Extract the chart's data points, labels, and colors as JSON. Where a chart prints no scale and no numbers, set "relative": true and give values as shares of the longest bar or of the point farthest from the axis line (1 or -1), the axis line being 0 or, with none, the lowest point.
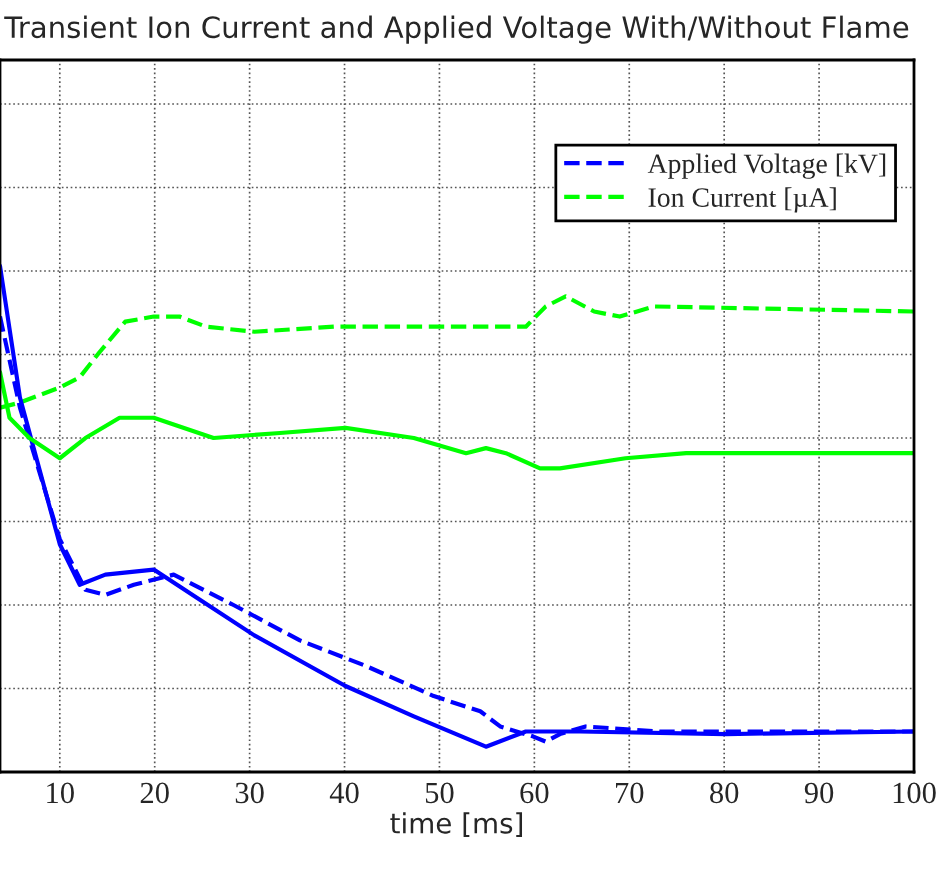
{
  "chart_data": {
    "type": "line",
    "title": "Transient Ion Current and Applied Voltage With/Without Flame",
    "xlabel": "time [ms]",
    "relative": true,
    "xlim": [
      3.7,
      100
    ],
    "xticks": [
      10,
      20,
      30,
      40,
      50,
      60,
      70,
      80,
      90,
      100
    ],
    "grid": true,
    "legend": "top right",
    "tick_labels": "x",
    "series": [
      {
        "name": "Applied Voltage [kV]",
        "color": "#0000ff",
        "line_style": "dashed",
        "x": [
          3.7,
          5.8,
          10.0,
          12.7,
          14.8,
          17.8,
          22.0,
          28.3,
          35.3,
          42.2,
          49.4,
          54.3,
          56.4,
          59.9,
          61.2,
          62.7,
          65.4,
          73.2,
          100
        ],
        "values": [
          0.9,
          0.72,
          0.46,
          0.36,
          0.35,
          0.37,
          0.39,
          0.33,
          0.26,
          0.21,
          0.15,
          0.12,
          0.09,
          0.07,
          0.06,
          0.075,
          0.09,
          0.08,
          0.08
        ]
      },
      {
        "name": "Ion Current [µA]",
        "color": "#00ff00",
        "line_style": "dashed",
        "x": [
          3.7,
          5.8,
          10.0,
          12.1,
          14.2,
          16.9,
          19.9,
          22.6,
          25.4,
          30.5,
          38.9,
          54.3,
          59.1,
          61.2,
          63.3,
          66.3,
          69.0,
          72.6,
          100
        ],
        "values": [
          0.72,
          0.73,
          0.76,
          0.78,
          0.83,
          0.89,
          0.9,
          0.9,
          0.88,
          0.87,
          0.88,
          0.88,
          0.88,
          0.92,
          0.94,
          0.91,
          0.9,
          0.92,
          0.91
        ]
      },
      {
        "color": "#0000ff",
        "line_style": "solid",
        "x": [
          3.7,
          5.8,
          10.0,
          12.1,
          14.8,
          19.9,
          24.8,
          30.5,
          40.1,
          47.3,
          54.9,
          59.1,
          64.8,
          80.2,
          100
        ],
        "values": [
          1.0,
          0.74,
          0.45,
          0.37,
          0.39,
          0.4,
          0.34,
          0.27,
          0.17,
          0.11,
          0.05,
          0.08,
          0.08,
          0.075,
          0.08
        ]
      },
      {
        "color": "#00ff00",
        "line_style": "solid",
        "x": [
          3.7,
          4.7,
          6.8,
          10.0,
          12.7,
          16.3,
          19.9,
          26.2,
          33.2,
          40.1,
          47.3,
          52.8,
          54.9,
          57.0,
          60.6,
          62.7,
          69.6,
          76.0,
          100
        ],
        "values": [
          0.79,
          0.7,
          0.66,
          0.62,
          0.66,
          0.7,
          0.7,
          0.66,
          0.67,
          0.68,
          0.66,
          0.63,
          0.64,
          0.63,
          0.6,
          0.6,
          0.62,
          0.63,
          0.63
        ]
      }
    ]
  }
}
